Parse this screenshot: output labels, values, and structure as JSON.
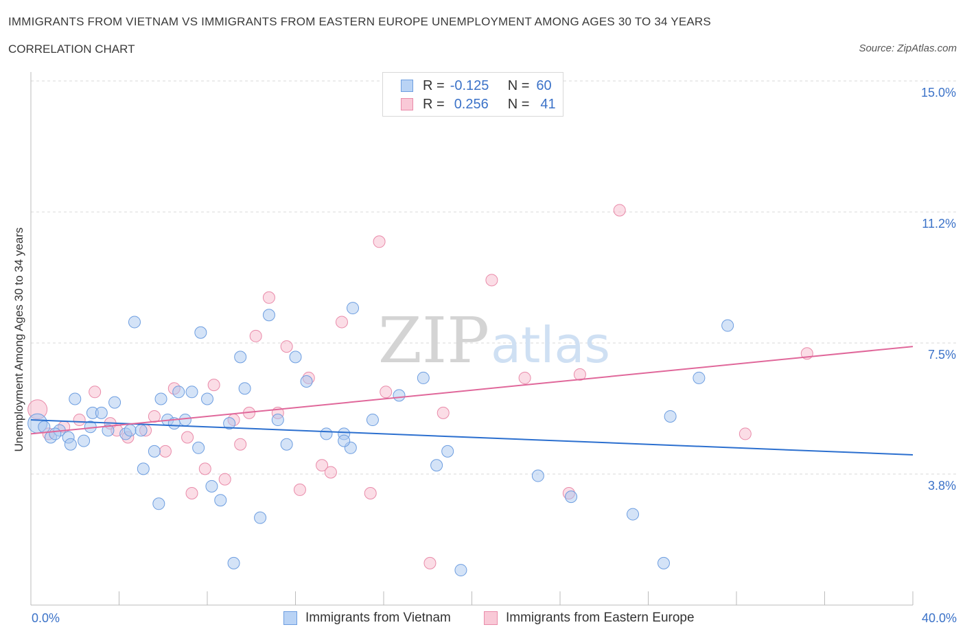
{
  "header": {
    "title": "IMMIGRANTS FROM VIETNAM VS IMMIGRANTS FROM EASTERN EUROPE UNEMPLOYMENT AMONG AGES 30 TO 34 YEARS",
    "subtitle": "CORRELATION CHART",
    "source": "Source: ZipAtlas.com"
  },
  "legend": {
    "rows": [
      {
        "r_label": "R =",
        "r_value": "-0.125",
        "n_label": "N =",
        "n_value": "60"
      },
      {
        "r_label": "R =",
        "r_value": "0.256",
        "n_label": "N =",
        "n_value": "41"
      }
    ]
  },
  "watermark": {
    "zip": "ZIP",
    "atlas": "atlas"
  },
  "colors": {
    "blue_fill": "#a9c8f0",
    "blue_stroke": "#6c9de0",
    "blue_line": "#2b6fcf",
    "pink_fill": "#f7bccd",
    "pink_stroke": "#e98aa9",
    "pink_line": "#e0679a",
    "axis_text": "#3b72c8",
    "grid": "#d9d9d9"
  },
  "chart_data": {
    "type": "scatter",
    "title": "IMMIGRANTS FROM VIETNAM VS IMMIGRANTS FROM EASTERN EUROPE UNEMPLOYMENT AMONG AGES 30 TO 34 YEARS",
    "xlabel": "",
    "ylabel": "Unemployment Among Ages 30 to 34 years",
    "xlim": [
      0,
      40
    ],
    "ylim": [
      0.0,
      15.0
    ],
    "x_tick_labels": [
      "0.0%",
      "40.0%"
    ],
    "y_tick_labels": [
      "3.8%",
      "7.5%",
      "11.2%",
      "15.0%"
    ],
    "y_ticks": [
      3.75,
      7.5,
      11.25,
      15.0
    ],
    "grid": true,
    "legend_position": "bottom",
    "series": [
      {
        "name": "Immigrants from Vietnam",
        "trend": {
          "x": [
            0,
            40
          ],
          "y": [
            5.3,
            4.3
          ]
        },
        "points": [
          {
            "x": 0.3,
            "y": 5.2,
            "big": true
          },
          {
            "x": 0.6,
            "y": 5.1
          },
          {
            "x": 0.9,
            "y": 4.8
          },
          {
            "x": 1.3,
            "y": 5.0
          },
          {
            "x": 1.7,
            "y": 4.8
          },
          {
            "x": 2.0,
            "y": 5.9
          },
          {
            "x": 1.8,
            "y": 4.6
          },
          {
            "x": 2.7,
            "y": 5.1
          },
          {
            "x": 2.8,
            "y": 5.5
          },
          {
            "x": 3.2,
            "y": 5.5
          },
          {
            "x": 3.8,
            "y": 5.8
          },
          {
            "x": 4.3,
            "y": 4.9
          },
          {
            "x": 4.7,
            "y": 8.1
          },
          {
            "x": 5.1,
            "y": 3.9
          },
          {
            "x": 5.6,
            "y": 4.4
          },
          {
            "x": 5.9,
            "y": 5.9
          },
          {
            "x": 5.8,
            "y": 2.9
          },
          {
            "x": 6.2,
            "y": 5.3
          },
          {
            "x": 6.7,
            "y": 6.1
          },
          {
            "x": 7.0,
            "y": 5.3
          },
          {
            "x": 7.3,
            "y": 6.1
          },
          {
            "x": 7.6,
            "y": 4.5
          },
          {
            "x": 7.7,
            "y": 7.8
          },
          {
            "x": 8.0,
            "y": 5.9
          },
          {
            "x": 8.2,
            "y": 3.4
          },
          {
            "x": 8.6,
            "y": 3.0
          },
          {
            "x": 9.0,
            "y": 5.2
          },
          {
            "x": 9.5,
            "y": 7.1
          },
          {
            "x": 9.7,
            "y": 6.2
          },
          {
            "x": 10.4,
            "y": 2.5
          },
          {
            "x": 10.8,
            "y": 8.3
          },
          {
            "x": 11.2,
            "y": 5.3
          },
          {
            "x": 11.6,
            "y": 4.6
          },
          {
            "x": 12.0,
            "y": 7.1
          },
          {
            "x": 12.5,
            "y": 6.4
          },
          {
            "x": 13.4,
            "y": 4.9
          },
          {
            "x": 14.2,
            "y": 4.9
          },
          {
            "x": 14.5,
            "y": 4.5
          },
          {
            "x": 14.6,
            "y": 8.5
          },
          {
            "x": 14.2,
            "y": 4.7
          },
          {
            "x": 15.5,
            "y": 5.3
          },
          {
            "x": 16.7,
            "y": 6.0
          },
          {
            "x": 17.8,
            "y": 6.5
          },
          {
            "x": 18.4,
            "y": 4.0
          },
          {
            "x": 18.9,
            "y": 4.4
          },
          {
            "x": 19.5,
            "y": 1.0
          },
          {
            "x": 23.0,
            "y": 3.7
          },
          {
            "x": 24.5,
            "y": 3.1
          },
          {
            "x": 27.3,
            "y": 2.6
          },
          {
            "x": 28.7,
            "y": 1.2
          },
          {
            "x": 29.0,
            "y": 5.4
          },
          {
            "x": 30.3,
            "y": 6.5
          },
          {
            "x": 31.6,
            "y": 8.0
          },
          {
            "x": 9.2,
            "y": 1.2
          },
          {
            "x": 4.5,
            "y": 5.0
          },
          {
            "x": 3.5,
            "y": 5.0
          },
          {
            "x": 2.4,
            "y": 4.7
          },
          {
            "x": 5.0,
            "y": 5.0
          },
          {
            "x": 6.5,
            "y": 5.2
          },
          {
            "x": 1.1,
            "y": 4.9
          }
        ]
      },
      {
        "name": "Immigrants from Eastern Europe",
        "trend": {
          "x": [
            0,
            40
          ],
          "y": [
            4.9,
            7.4
          ]
        },
        "points": [
          {
            "x": 0.3,
            "y": 5.6,
            "big": true
          },
          {
            "x": 0.8,
            "y": 4.9
          },
          {
            "x": 1.5,
            "y": 5.1
          },
          {
            "x": 2.2,
            "y": 5.3
          },
          {
            "x": 2.9,
            "y": 6.1
          },
          {
            "x": 3.6,
            "y": 5.2
          },
          {
            "x": 3.9,
            "y": 5.0
          },
          {
            "x": 4.4,
            "y": 4.8
          },
          {
            "x": 5.2,
            "y": 5.0
          },
          {
            "x": 5.6,
            "y": 5.4
          },
          {
            "x": 6.1,
            "y": 4.4
          },
          {
            "x": 6.5,
            "y": 6.2
          },
          {
            "x": 7.1,
            "y": 4.8
          },
          {
            "x": 7.3,
            "y": 3.2
          },
          {
            "x": 7.9,
            "y": 3.9
          },
          {
            "x": 8.3,
            "y": 6.3
          },
          {
            "x": 8.8,
            "y": 3.6
          },
          {
            "x": 9.2,
            "y": 5.3
          },
          {
            "x": 9.5,
            "y": 4.6
          },
          {
            "x": 9.9,
            "y": 5.5
          },
          {
            "x": 10.2,
            "y": 7.7
          },
          {
            "x": 10.8,
            "y": 8.8
          },
          {
            "x": 11.2,
            "y": 5.5
          },
          {
            "x": 11.6,
            "y": 7.4
          },
          {
            "x": 12.2,
            "y": 3.3
          },
          {
            "x": 12.6,
            "y": 6.5
          },
          {
            "x": 13.2,
            "y": 4.0
          },
          {
            "x": 13.6,
            "y": 3.8
          },
          {
            "x": 14.1,
            "y": 8.1
          },
          {
            "x": 15.4,
            "y": 3.2
          },
          {
            "x": 15.8,
            "y": 10.4
          },
          {
            "x": 16.1,
            "y": 6.1
          },
          {
            "x": 18.1,
            "y": 1.2
          },
          {
            "x": 18.7,
            "y": 5.5
          },
          {
            "x": 20.9,
            "y": 9.3
          },
          {
            "x": 22.4,
            "y": 6.5
          },
          {
            "x": 24.4,
            "y": 3.2
          },
          {
            "x": 24.9,
            "y": 6.6
          },
          {
            "x": 26.7,
            "y": 11.3
          },
          {
            "x": 32.4,
            "y": 4.9
          },
          {
            "x": 35.2,
            "y": 7.2
          }
        ]
      }
    ]
  },
  "bottom_legend": [
    {
      "label": "Immigrants from Vietnam"
    },
    {
      "label": "Immigrants from Eastern Europe"
    }
  ]
}
